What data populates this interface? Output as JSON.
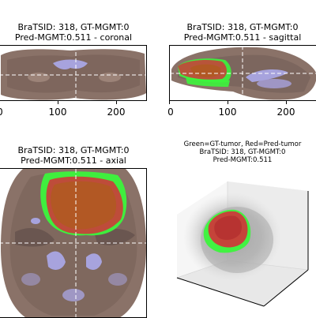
{
  "panels": {
    "coronal": {
      "title_line1": "BraTSID: 318, GT-MGMT:0",
      "title_line2": "Pred-MGMT:0.511 - coronal",
      "xticks": [
        "0",
        "100",
        "200"
      ]
    },
    "sagittal": {
      "title_line1": "BraTSID: 318, GT-MGMT:0",
      "title_line2": "Pred-MGMT:0.511 - sagittal",
      "xticks": [
        "0",
        "100",
        "200"
      ]
    },
    "axial": {
      "title_line1": "BraTSID: 318, GT-MGMT:0",
      "title_line2": "Pred-MGMT:0.511 - axial"
    },
    "volume3d": {
      "title_line1": "Green=GT-tumor, Red=Pred-tumor",
      "title_line2": "BraTSID: 318, GT-MGMT:0",
      "title_line3": "Pred-MGMT:0.511"
    }
  },
  "colors": {
    "brain": "#8a7268",
    "brain_dark": "#5a4640",
    "ventricle": "#a7a3dd",
    "gt_tumor": "#3cf53c",
    "pred_tumor": "#cc3a3a",
    "overlap": "#b05a22",
    "crosshair": "#ffffff"
  },
  "chart_data": [
    {
      "type": "image-slice",
      "view": "coronal",
      "brats_id": 318,
      "gt_mgmt": 0,
      "pred_mgmt": 0.511,
      "xlim": [
        0,
        240
      ],
      "xticks": [
        0,
        100,
        200
      ],
      "crosshair": {
        "x": 125
      }
    },
    {
      "type": "image-slice",
      "view": "sagittal",
      "brats_id": 318,
      "gt_mgmt": 0,
      "pred_mgmt": 0.511,
      "xlim": [
        0,
        240
      ],
      "xticks": [
        0,
        100,
        200
      ],
      "crosshair": {
        "x": 125
      }
    },
    {
      "type": "image-slice",
      "view": "axial",
      "brats_id": 318,
      "gt_mgmt": 0,
      "pred_mgmt": 0.511,
      "crosshair": {
        "x": 125
      }
    },
    {
      "type": "3d-volume",
      "brats_id": 318,
      "gt_mgmt": 0,
      "pred_mgmt": 0.511,
      "legend": "Green=GT-tumor, Red=Pred-tumor"
    }
  ]
}
